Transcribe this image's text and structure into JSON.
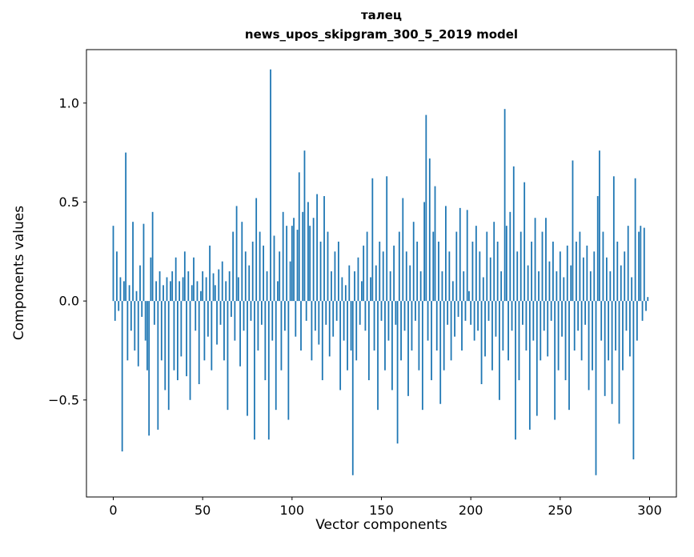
{
  "chart_data": {
    "type": "bar",
    "title": "талец",
    "subtitle": "news_upos_skipgram_300_5_2019 model",
    "xlabel": "Vector components",
    "ylabel": "Components values",
    "bar_color": "#1f77b4",
    "x_ticks": [
      0,
      50,
      100,
      150,
      200,
      250,
      300
    ],
    "y_ticks": [
      -0.5,
      0.0,
      0.5,
      1.0
    ],
    "xlim": [
      -15,
      315
    ],
    "ylim": [
      -0.99,
      1.27
    ],
    "n_components": 300,
    "legend": "none",
    "grid": false,
    "values": [
      0.38,
      -0.1,
      0.25,
      -0.05,
      0.12,
      -0.76,
      0.1,
      0.75,
      -0.3,
      0.08,
      -0.15,
      0.4,
      -0.25,
      0.05,
      -0.33,
      0.18,
      -0.08,
      0.39,
      -0.2,
      -0.35,
      -0.68,
      0.22,
      0.45,
      -0.12,
      0.1,
      -0.65,
      0.15,
      -0.3,
      0.08,
      -0.45,
      0.12,
      -0.55,
      0.1,
      0.15,
      -0.35,
      0.22,
      -0.4,
      0.1,
      -0.28,
      0.12,
      0.25,
      -0.38,
      0.15,
      -0.5,
      0.08,
      0.22,
      -0.15,
      0.1,
      -0.42,
      0.05,
      0.15,
      -0.3,
      0.12,
      -0.18,
      0.28,
      -0.35,
      0.14,
      0.08,
      -0.22,
      0.16,
      -0.12,
      0.2,
      -0.3,
      0.1,
      -0.55,
      0.15,
      -0.08,
      0.35,
      -0.2,
      0.48,
      0.12,
      -0.33,
      0.4,
      -0.15,
      0.25,
      -0.58,
      0.18,
      -0.1,
      0.3,
      -0.7,
      0.52,
      -0.25,
      0.35,
      -0.12,
      0.28,
      -0.4,
      0.15,
      -0.7,
      1.17,
      -0.2,
      0.33,
      -0.55,
      0.1,
      0.25,
      -0.35,
      0.45,
      -0.15,
      0.38,
      -0.6,
      0.2,
      0.38,
      0.42,
      -0.18,
      0.36,
      0.65,
      -0.25,
      0.45,
      0.76,
      -0.1,
      0.5,
      0.38,
      -0.3,
      0.42,
      -0.15,
      0.54,
      -0.22,
      0.3,
      -0.4,
      0.53,
      -0.12,
      0.35,
      -0.28,
      0.15,
      -0.18,
      0.25,
      -0.1,
      0.3,
      -0.45,
      0.12,
      -0.2,
      0.08,
      -0.35,
      0.18,
      -0.25,
      -0.88,
      0.15,
      -0.3,
      0.22,
      -0.12,
      0.1,
      0.28,
      -0.15,
      0.35,
      -0.4,
      0.12,
      0.62,
      -0.25,
      0.18,
      -0.55,
      0.3,
      -0.1,
      0.25,
      -0.35,
      0.63,
      -0.2,
      0.15,
      -0.45,
      0.28,
      -0.12,
      -0.72,
      0.35,
      -0.3,
      0.52,
      -0.15,
      0.25,
      -0.48,
      0.18,
      -0.25,
      0.4,
      -0.1,
      0.3,
      -0.35,
      0.15,
      -0.55,
      0.5,
      0.94,
      -0.2,
      0.72,
      -0.4,
      0.35,
      0.58,
      -0.25,
      0.3,
      -0.52,
      0.15,
      -0.35,
      0.48,
      -0.12,
      0.25,
      -0.3,
      0.1,
      -0.18,
      0.35,
      -0.08,
      0.47,
      -0.25,
      0.15,
      -0.1,
      0.46,
      0.05,
      -0.12,
      0.3,
      -0.2,
      0.38,
      -0.15,
      0.25,
      -0.42,
      0.12,
      -0.28,
      0.35,
      -0.1,
      0.22,
      -0.35,
      0.4,
      -0.18,
      0.3,
      -0.5,
      0.15,
      -0.25,
      0.97,
      0.38,
      -0.3,
      0.45,
      -0.15,
      0.68,
      -0.7,
      0.25,
      -0.4,
      0.35,
      -0.12,
      0.6,
      -0.25,
      0.18,
      -0.65,
      0.3,
      -0.2,
      0.42,
      -0.58,
      0.15,
      -0.3,
      0.35,
      -0.15,
      0.42,
      -0.28,
      0.2,
      -0.1,
      0.3,
      -0.6,
      0.15,
      -0.35,
      0.25,
      -0.18,
      0.12,
      -0.4,
      0.28,
      -0.55,
      0.18,
      0.71,
      -0.25,
      0.3,
      -0.15,
      0.35,
      -0.3,
      0.22,
      -0.12,
      0.28,
      -0.45,
      0.15,
      -0.35,
      0.25,
      -0.88,
      0.53,
      0.76,
      -0.2,
      0.35,
      -0.48,
      0.22,
      -0.3,
      0.15,
      -0.52,
      0.63,
      -0.25,
      0.3,
      -0.62,
      0.18,
      -0.35,
      0.25,
      -0.15,
      0.38,
      -0.28,
      0.12,
      -0.8,
      0.62,
      -0.2,
      0.35,
      0.38,
      -0.1,
      0.37,
      -0.05,
      0.02
    ]
  }
}
